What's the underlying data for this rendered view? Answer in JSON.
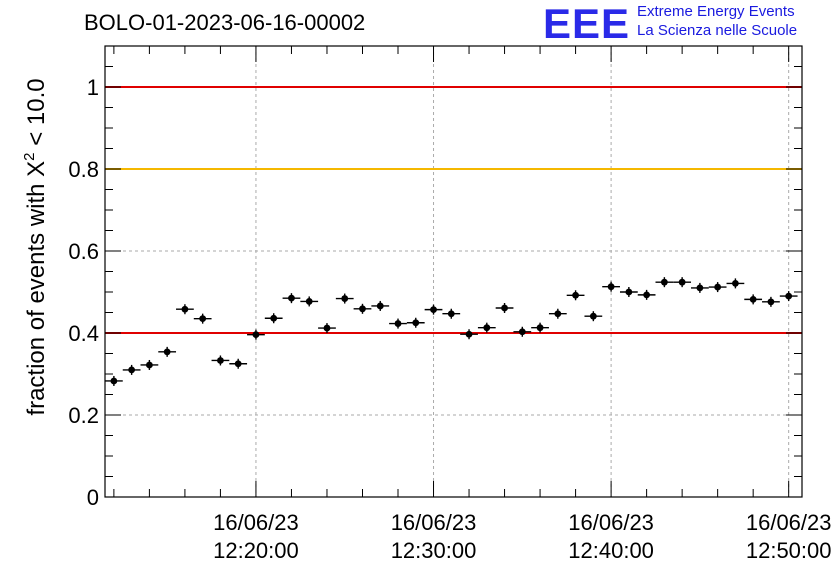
{
  "header": {
    "title": "BOLO-01-2023-06-16-00002",
    "logo_mark": "EEE",
    "logo_line1": "Extreme Energy Events",
    "logo_line2": "La Scienza nelle Scuole"
  },
  "colors": {
    "threshold_red": "#e00000",
    "threshold_yellow": "#f5b800",
    "points": "#000000",
    "grid": "#aaaaaa",
    "logo": "#2a2ae8"
  },
  "chart_data": {
    "type": "scatter",
    "title": "BOLO-01-2023-06-16-00002",
    "ylabel_main": "fraction of events with X",
    "ylabel_sup": "2",
    "ylabel_tail": " < 10.0",
    "xlabel": "",
    "ylim": [
      0,
      1.1
    ],
    "yticks": [
      0,
      0.2,
      0.4,
      0.6,
      0.8,
      1
    ],
    "ytick_labels": [
      "0",
      "0.2",
      "0.4",
      "0.6",
      "0.8",
      "1"
    ],
    "xlim": [
      "12:11:30",
      "12:50:45"
    ],
    "xticks": [
      {
        "time": "12:20:00",
        "label_date": "16/06/23",
        "label_time": "12:20:00"
      },
      {
        "time": "12:30:00",
        "label_date": "16/06/23",
        "label_time": "12:30:00"
      },
      {
        "time": "12:40:00",
        "label_date": "16/06/23",
        "label_time": "12:40:00"
      },
      {
        "time": "12:50:00",
        "label_date": "16/06/23",
        "label_time": "12:50:00"
      }
    ],
    "grid": true,
    "reference_lines": [
      {
        "y": 1.0,
        "color": "red"
      },
      {
        "y": 0.8,
        "color": "yellow"
      },
      {
        "y": 0.4,
        "color": "red"
      }
    ],
    "x": [
      "12:12:00",
      "12:13:00",
      "12:14:00",
      "12:15:00",
      "12:16:00",
      "12:17:00",
      "12:18:00",
      "12:19:00",
      "12:20:00",
      "12:21:00",
      "12:22:00",
      "12:23:00",
      "12:24:00",
      "12:25:00",
      "12:26:00",
      "12:27:00",
      "12:28:00",
      "12:29:00",
      "12:30:00",
      "12:31:00",
      "12:32:00",
      "12:33:00",
      "12:34:00",
      "12:35:00",
      "12:36:00",
      "12:37:00",
      "12:38:00",
      "12:39:00",
      "12:40:00",
      "12:41:00",
      "12:42:00",
      "12:43:00",
      "12:44:00",
      "12:45:00",
      "12:46:00",
      "12:47:00",
      "12:48:00",
      "12:49:00",
      "12:50:00"
    ],
    "y": [
      0.283,
      0.31,
      0.322,
      0.354,
      0.458,
      0.435,
      0.333,
      0.325,
      0.396,
      0.436,
      0.485,
      0.477,
      0.412,
      0.484,
      0.459,
      0.466,
      0.423,
      0.425,
      0.457,
      0.447,
      0.397,
      0.413,
      0.461,
      0.403,
      0.413,
      0.447,
      0.492,
      0.441,
      0.513,
      0.5,
      0.493,
      0.524,
      0.524,
      0.51,
      0.512,
      0.521,
      0.482,
      0.476,
      0.49
    ],
    "x_error_minutes": 0.5
  }
}
